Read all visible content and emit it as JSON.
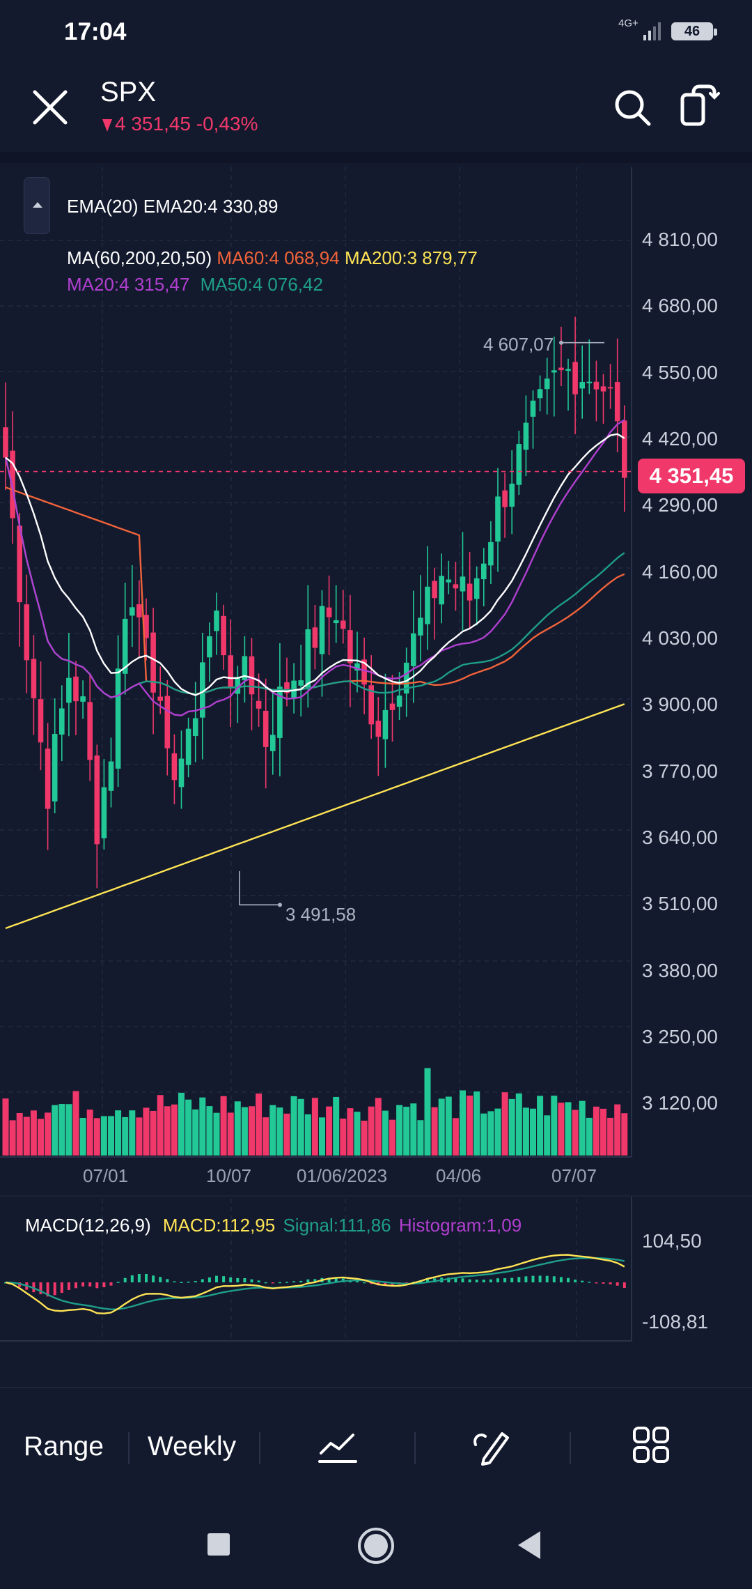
{
  "status_bar": {
    "time": "17:04",
    "network": "4G+",
    "battery": "46"
  },
  "header": {
    "symbol": "SPX",
    "change_text": "4 351,45 -0,43%"
  },
  "legend": {
    "ema_line": "EMA(20) EMA20:4 330,89",
    "ma_prefix": "MA(60,200,20,50)",
    "ma60": "MA60:4 068,94",
    "ma200": "MA200:3 879,77",
    "ma20": "MA20:4 315,47",
    "ma50": "MA50:4 076,42"
  },
  "price_axis": {
    "ticks": [
      "4 810,00",
      "4 680,00",
      "4 550,00",
      "4 420,00",
      "4 290,00",
      "4 160,00",
      "4 030,00",
      "3 900,00",
      "3 770,00",
      "3 640,00",
      "3 510,00",
      "3 380,00",
      "3 250,00",
      "3 120,00"
    ],
    "current_price": "4 351,45"
  },
  "time_axis": {
    "labels": [
      "07/01",
      "10/07",
      "01/06/2023",
      "04/06",
      "07/07"
    ]
  },
  "annotations": {
    "high": "4 607,07",
    "low": "3 491,58"
  },
  "macd": {
    "label": "MACD(12,26,9)",
    "macd_value": "MACD:112,95",
    "signal_value": "Signal:111,86",
    "histogram_value": "Histogram:1,09",
    "ticks": [
      "104,50",
      "-108,81"
    ]
  },
  "toolbar": {
    "range_label": "Range",
    "interval_label": "Weekly",
    "icons": [
      "indicator-icon",
      "drawing-icon",
      "layout-grid-icon"
    ]
  },
  "nav": {
    "icons": [
      "recent-apps-icon",
      "home-icon",
      "back-icon"
    ]
  },
  "colors": {
    "background": "#131a2d",
    "up": "#22c997",
    "down": "#f0386a",
    "ema20": "#ffffff",
    "ma60": "#f2633a",
    "ma200": "#ffe455",
    "ma20": "#b13fd0",
    "ma50": "#1e9e8a"
  },
  "chart_data": [
    {
      "type": "candlestick",
      "title": "SPX",
      "interval": "Weekly",
      "ylim": [
        3050,
        4880
      ],
      "y_ticks": [
        4810,
        4680,
        4550,
        4420,
        4290,
        4160,
        4030,
        3900,
        3770,
        3640,
        3510,
        3380,
        3250,
        3120
      ],
      "x_labels": [
        "07/01",
        "10/07",
        "01/06/2023",
        "04/06",
        "07/07"
      ],
      "last_price": 4351.45,
      "annotated_high": 4607.07,
      "annotated_low": 3491.58,
      "series": [
        {
          "name": "EMA20",
          "value": 4330.89
        },
        {
          "name": "MA60",
          "value": 4068.94
        },
        {
          "name": "MA200",
          "value": 3879.77
        },
        {
          "name": "MA20",
          "value": 4315.47
        },
        {
          "name": "MA50",
          "value": 4076.42
        }
      ]
    },
    {
      "type": "line",
      "title": "MACD(12,26,9)",
      "y_ticks": [
        104.5,
        -108.81
      ],
      "series": [
        {
          "name": "MACD",
          "value": 112.95
        },
        {
          "name": "Signal",
          "value": 111.86
        },
        {
          "name": "Histogram",
          "value": 1.09
        }
      ]
    }
  ]
}
